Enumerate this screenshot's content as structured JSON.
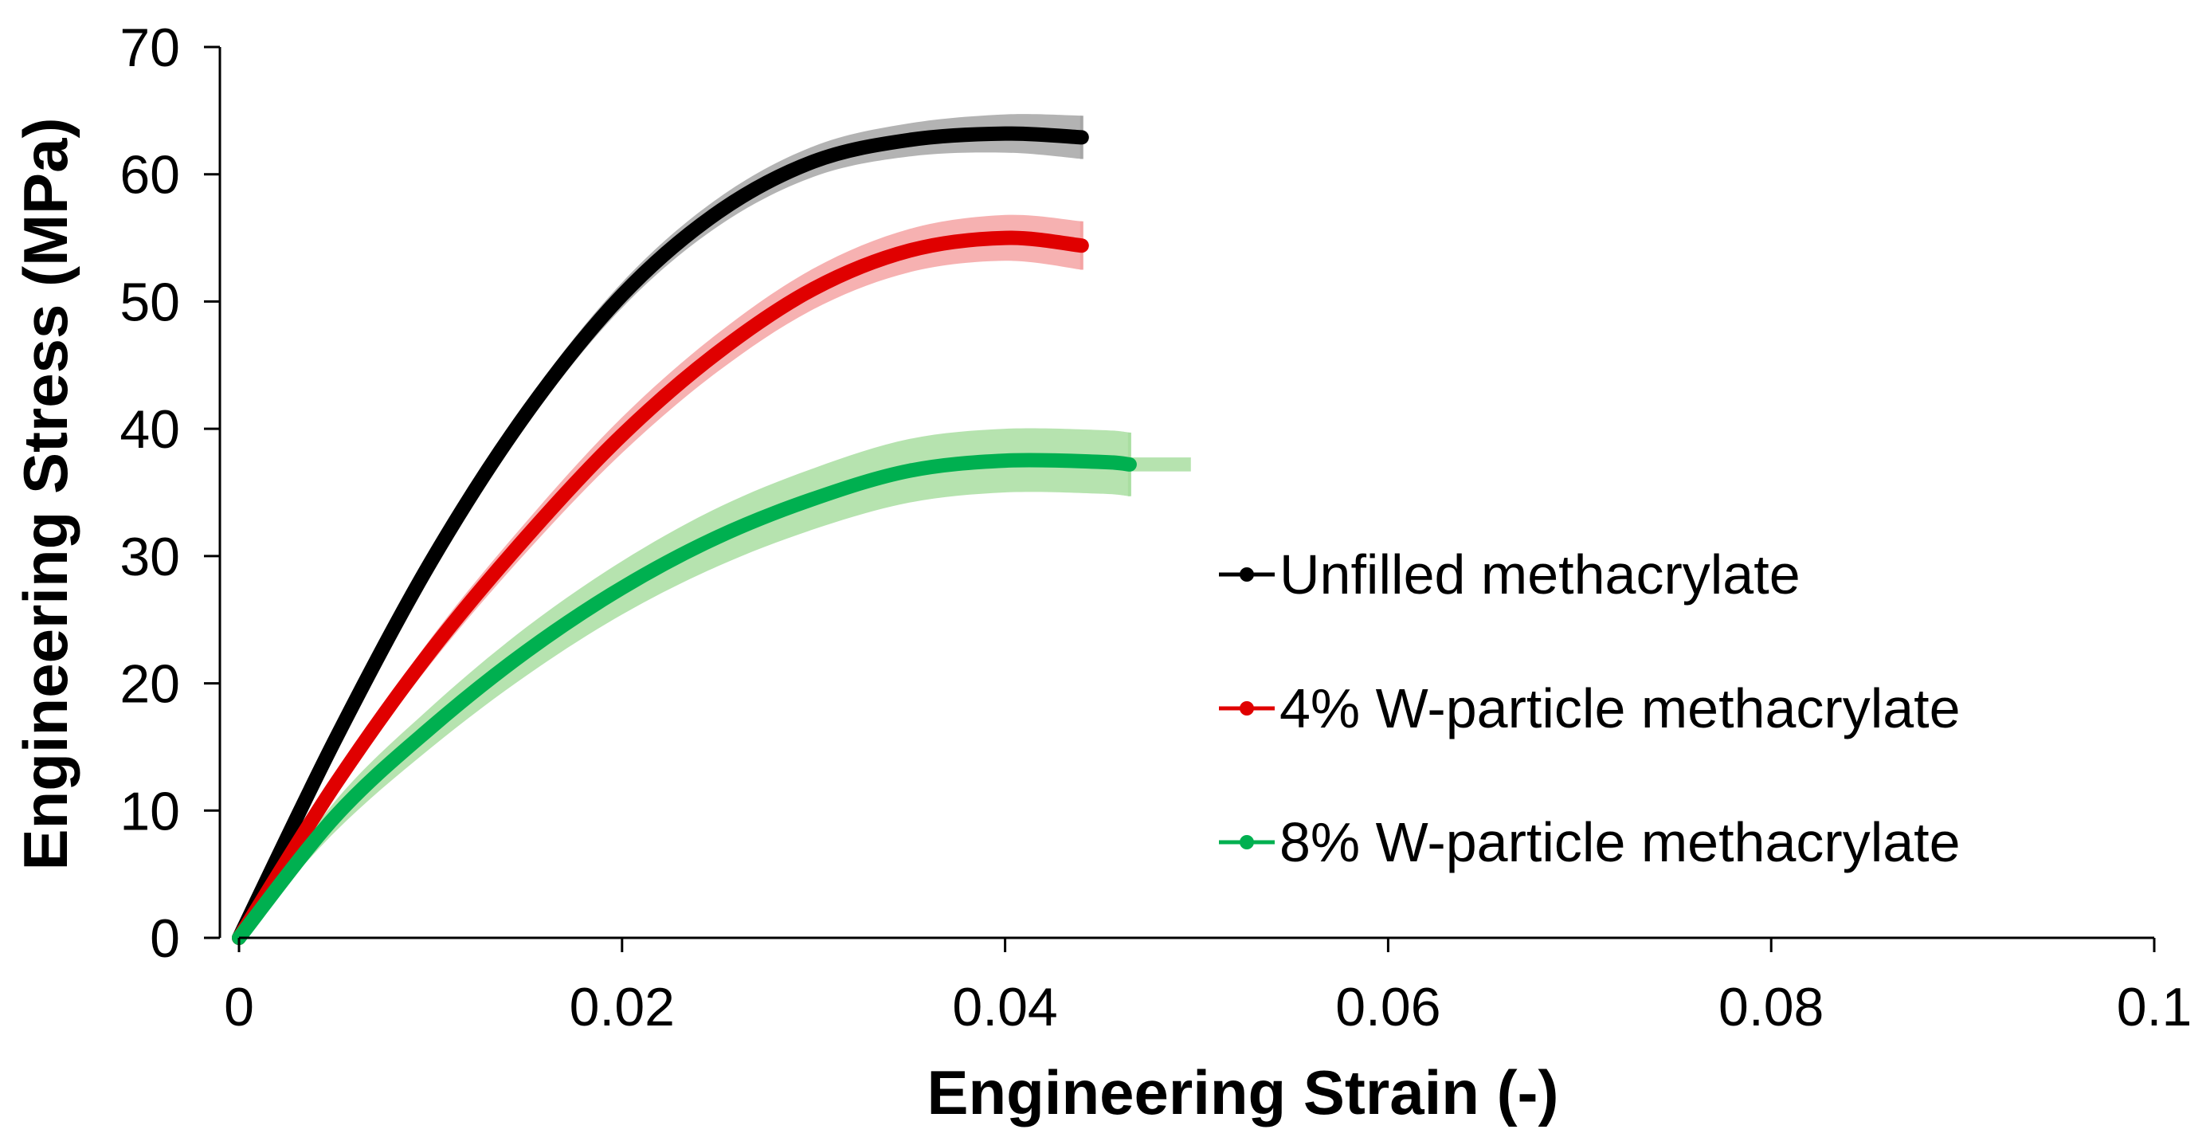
{
  "chart_data": {
    "type": "line",
    "title": "",
    "xlabel": "Engineering Strain (-)",
    "ylabel": "Engineering Stress (MPa)",
    "xlim": [
      0,
      0.1
    ],
    "ylim": [
      0,
      70
    ],
    "x_ticks": [
      0,
      0.02,
      0.04,
      0.06,
      0.08,
      0.1
    ],
    "x_tick_labels": [
      "0",
      "0.02",
      "0.04",
      "0.06",
      "0.08",
      "0.1"
    ],
    "y_ticks": [
      0,
      10,
      20,
      30,
      40,
      50,
      60,
      70
    ],
    "y_tick_labels": [
      "0",
      "10",
      "20",
      "30",
      "40",
      "50",
      "60",
      "70"
    ],
    "grid": false,
    "legend_position": "right-middle",
    "series": [
      {
        "name": "Unfilled methacrylate",
        "color": "#000000",
        "band_color": "#a6a6a6",
        "x": [
          0,
          0.005,
          0.01,
          0.015,
          0.02,
          0.025,
          0.03,
          0.035,
          0.04,
          0.044
        ],
        "y": [
          0,
          15.5,
          29.5,
          41.2,
          50.5,
          57.0,
          61.0,
          62.7,
          63.2,
          62.9
        ],
        "band_half_width": [
          0.1,
          0.5,
          0.8,
          0.9,
          1.0,
          1.1,
          1.2,
          1.3,
          1.5,
          1.7
        ]
      },
      {
        "name": "4% W-particle methacrylate",
        "color": "#e00000",
        "band_color": "#f4a3a3",
        "x": [
          0,
          0.005,
          0.01,
          0.015,
          0.02,
          0.025,
          0.03,
          0.035,
          0.04,
          0.044
        ],
        "y": [
          0,
          12.0,
          22.5,
          31.5,
          39.5,
          46.0,
          51.0,
          54.0,
          55.0,
          54.4
        ],
        "band_half_width": [
          0.1,
          0.6,
          1.0,
          1.2,
          1.4,
          1.5,
          1.6,
          1.7,
          1.8,
          1.9
        ]
      },
      {
        "name": "8% W-particle methacrylate",
        "color": "#00b050",
        "band_color": "#a9dea1",
        "x": [
          0,
          0.005,
          0.01,
          0.015,
          0.02,
          0.025,
          0.03,
          0.035,
          0.04,
          0.045,
          0.0465
        ],
        "y": [
          0,
          9.5,
          16.5,
          22.5,
          27.5,
          31.5,
          34.5,
          36.7,
          37.5,
          37.4,
          37.2
        ],
        "band_half_width": [
          0.1,
          1.2,
          1.6,
          1.9,
          2.1,
          2.3,
          2.4,
          2.5,
          2.5,
          2.5,
          2.5
        ],
        "band_x_max": 0.0497
      }
    ]
  }
}
